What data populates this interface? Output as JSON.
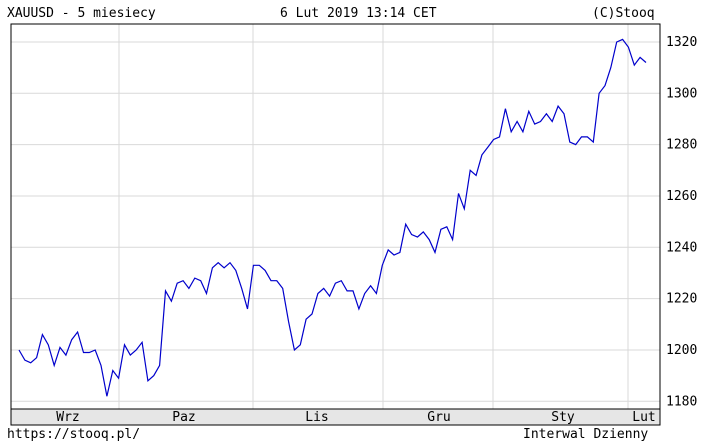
{
  "header": {
    "left": "XAUUSD - 5 miesiecy",
    "center": "6 Lut 2019 13:14 CET",
    "right": "(C)Stooq"
  },
  "footer": {
    "left": "https://stooq.pl/",
    "right": "Interwal Dzienny"
  },
  "chart_data": {
    "type": "line",
    "title": "",
    "xlabel": "",
    "ylabel": "",
    "ylim": [
      1177,
      1327
    ],
    "y_ticks": [
      1180,
      1200,
      1220,
      1240,
      1260,
      1280,
      1300,
      1320
    ],
    "x_month_labels": [
      "Wrz",
      "Paz",
      "Lis",
      "Gru",
      "Sty",
      "Lut"
    ],
    "grid": true,
    "line_color": "#0000cc",
    "series": [
      {
        "values": [
          1200,
          1196,
          1195,
          1197,
          1206,
          1202,
          1194,
          1201,
          1198,
          1204,
          1207,
          1199,
          1199,
          1200,
          1194,
          1182,
          1192,
          1189,
          1202,
          1198,
          1200,
          1203,
          1188,
          1190,
          1194,
          1223,
          1219,
          1226,
          1227,
          1224,
          1228,
          1227,
          1222,
          1232,
          1234,
          1232,
          1234,
          1231,
          1224,
          1216,
          1233,
          1233,
          1231,
          1227,
          1227,
          1224,
          1211,
          1200,
          1202,
          1212,
          1214,
          1222,
          1224,
          1221,
          1226,
          1227,
          1223,
          1223,
          1216,
          1222,
          1225,
          1222,
          1233,
          1239,
          1237,
          1238,
          1249,
          1245,
          1244,
          1246,
          1243,
          1238,
          1247,
          1248,
          1243,
          1261,
          1255,
          1270,
          1268,
          1276,
          1279,
          1282,
          1283,
          1294,
          1285,
          1289,
          1285,
          1293,
          1288,
          1289,
          1292,
          1289,
          1295,
          1292,
          1281,
          1280,
          1283,
          1283,
          1281,
          1300,
          1303,
          1310,
          1320,
          1321,
          1318,
          1311,
          1314,
          1312
        ]
      }
    ]
  }
}
